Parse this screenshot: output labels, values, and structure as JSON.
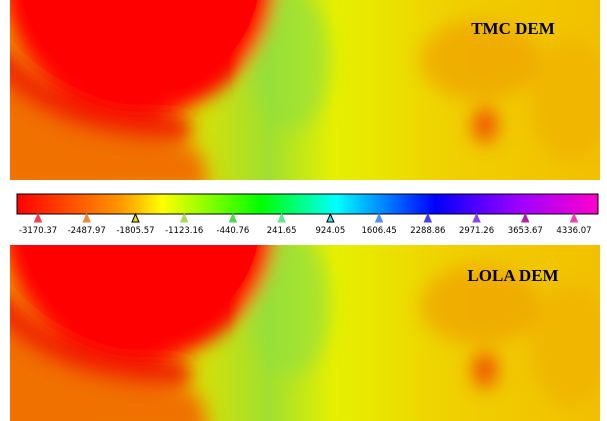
{
  "panels": [
    {
      "label": "TMC DEM"
    },
    {
      "label": "LOLA DEM"
    }
  ],
  "colorbar": {
    "ticks": [
      -3170.37,
      -2487.97,
      -1805.57,
      -1123.16,
      -440.76,
      241.65,
      924.05,
      1606.45,
      2288.86,
      2971.26,
      3653.67,
      4336.07
    ],
    "colors": [
      "#f0404a",
      "#f08a3a",
      "#e8e000",
      "#a8d860",
      "#50d850",
      "#60e890",
      "#30e8e8",
      "#5090f0",
      "#4040f0",
      "#9040f0",
      "#b020b0",
      "#f040b0"
    ]
  }
}
